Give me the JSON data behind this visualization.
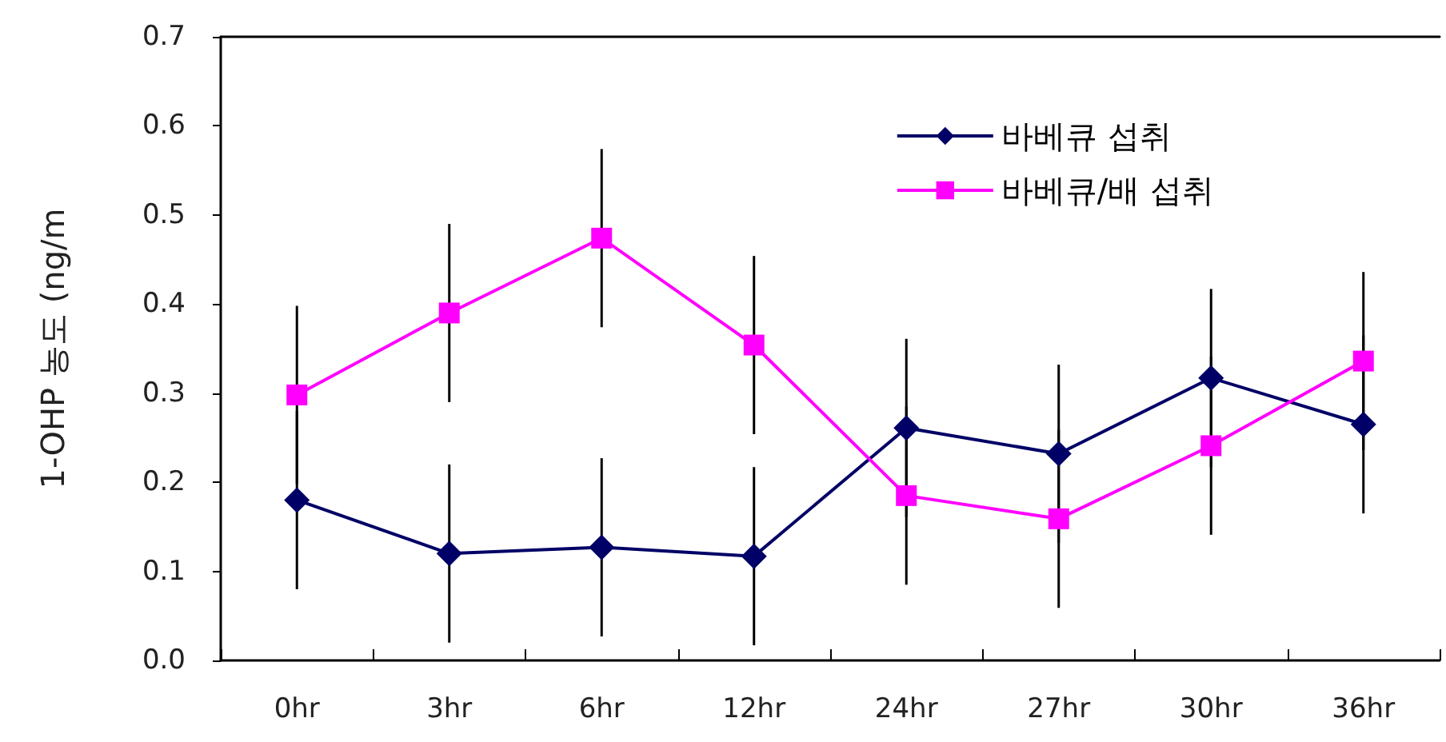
{
  "chart_data": {
    "type": "line",
    "ylabel": "1-OHP 농도 (ng/m",
    "categories": [
      "0hr",
      "3hr",
      "6hr",
      "12hr",
      "24hr",
      "27hr",
      "30hr",
      "36hr"
    ],
    "series": [
      {
        "name": "바베큐 섭취",
        "color": "#000066",
        "marker": "diamond",
        "values": [
          0.18,
          0.12,
          0.127,
          0.117,
          0.261,
          0.232,
          0.317,
          0.265
        ],
        "errors": [
          0.1,
          0.1,
          0.1,
          0.1,
          0.1,
          0.1,
          0.1,
          0.1
        ]
      },
      {
        "name": "바베큐/배 섭취",
        "color": "#ff00ff",
        "marker": "square",
        "values": [
          0.298,
          0.39,
          0.474,
          0.354,
          0.185,
          0.159,
          0.241,
          0.336
        ],
        "errors": [
          0.1,
          0.1,
          0.1,
          0.1,
          0.1,
          0.1,
          0.1,
          0.1
        ]
      }
    ],
    "ylim": [
      0,
      0.7
    ],
    "yticks": [
      {
        "value": 0,
        "label": "0.0"
      },
      0.1,
      0.2,
      0.3,
      0.4,
      0.5,
      0.6,
      0.7
    ],
    "grid": false,
    "legend": "top right",
    "line_style": "solid"
  }
}
